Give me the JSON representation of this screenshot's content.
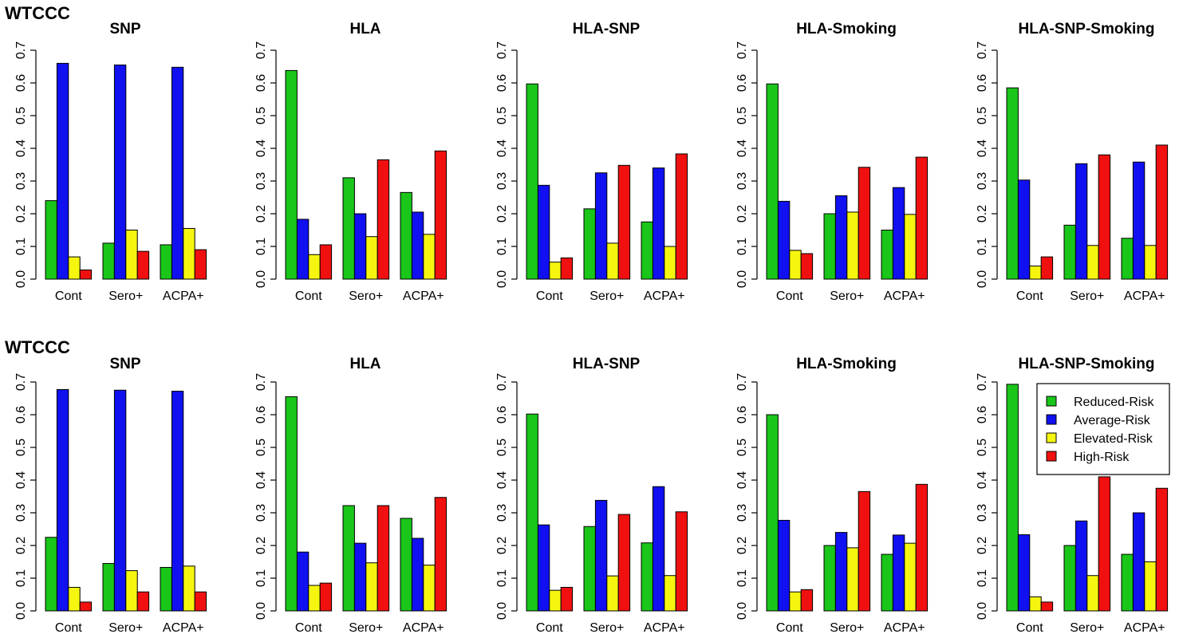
{
  "rows": [
    {
      "label": "WTCCC"
    },
    {
      "label": "WTCCC"
    }
  ],
  "legend": {
    "items": [
      {
        "label": "Reduced-Risk",
        "color": "#19c619"
      },
      {
        "label": "Average-Risk",
        "color": "#1010f0"
      },
      {
        "label": "Elevated-Risk",
        "color": "#f5f510"
      },
      {
        "label": "High-Risk",
        "color": "#f01010"
      }
    ]
  },
  "chart_data": [
    {
      "type": "bar",
      "title": "SNP",
      "categories": [
        "Cont",
        "Sero+",
        "ACPA+"
      ],
      "ylim": [
        0,
        0.7
      ],
      "yticks": [
        "0.0",
        "0.1",
        "0.2",
        "0.3",
        "0.4",
        "0.5",
        "0.6",
        "0.7"
      ],
      "series": [
        {
          "name": "Reduced-Risk",
          "values": [
            0.24,
            0.11,
            0.105
          ]
        },
        {
          "name": "Average-Risk",
          "values": [
            0.66,
            0.655,
            0.648
          ]
        },
        {
          "name": "Elevated-Risk",
          "values": [
            0.068,
            0.15,
            0.155
          ]
        },
        {
          "name": "High-Risk",
          "values": [
            0.028,
            0.085,
            0.09
          ]
        }
      ]
    },
    {
      "type": "bar",
      "title": "HLA",
      "categories": [
        "Cont",
        "Sero+",
        "ACPA+"
      ],
      "ylim": [
        0,
        0.7
      ],
      "yticks": [
        "0.0",
        "0.1",
        "0.2",
        "0.3",
        "0.4",
        "0.5",
        "0.6",
        "0.7"
      ],
      "series": [
        {
          "name": "Reduced-Risk",
          "values": [
            0.638,
            0.31,
            0.265
          ]
        },
        {
          "name": "Average-Risk",
          "values": [
            0.183,
            0.2,
            0.205
          ]
        },
        {
          "name": "Elevated-Risk",
          "values": [
            0.075,
            0.13,
            0.137
          ]
        },
        {
          "name": "High-Risk",
          "values": [
            0.105,
            0.365,
            0.392
          ]
        }
      ]
    },
    {
      "type": "bar",
      "title": "HLA-SNP",
      "categories": [
        "Cont",
        "Sero+",
        "ACPA+"
      ],
      "ylim": [
        0,
        0.7
      ],
      "yticks": [
        "0.0",
        "0.1",
        "0.2",
        "0.3",
        "0.4",
        "0.5",
        "0.6",
        "0.7"
      ],
      "series": [
        {
          "name": "Reduced-Risk",
          "values": [
            0.597,
            0.215,
            0.175
          ]
        },
        {
          "name": "Average-Risk",
          "values": [
            0.287,
            0.325,
            0.34
          ]
        },
        {
          "name": "Elevated-Risk",
          "values": [
            0.052,
            0.11,
            0.1
          ]
        },
        {
          "name": "High-Risk",
          "values": [
            0.065,
            0.348,
            0.383
          ]
        }
      ]
    },
    {
      "type": "bar",
      "title": "HLA-Smoking",
      "categories": [
        "Cont",
        "Sero+",
        "ACPA+"
      ],
      "ylim": [
        0,
        0.7
      ],
      "yticks": [
        "0.0",
        "0.1",
        "0.2",
        "0.3",
        "0.4",
        "0.5",
        "0.6",
        "0.7"
      ],
      "series": [
        {
          "name": "Reduced-Risk",
          "values": [
            0.597,
            0.2,
            0.15
          ]
        },
        {
          "name": "Average-Risk",
          "values": [
            0.238,
            0.255,
            0.28
          ]
        },
        {
          "name": "Elevated-Risk",
          "values": [
            0.088,
            0.205,
            0.198
          ]
        },
        {
          "name": "High-Risk",
          "values": [
            0.078,
            0.342,
            0.373
          ]
        }
      ]
    },
    {
      "type": "bar",
      "title": "HLA-SNP-Smoking",
      "categories": [
        "Cont",
        "Sero+",
        "ACPA+"
      ],
      "ylim": [
        0,
        0.7
      ],
      "yticks": [
        "0.0",
        "0.1",
        "0.2",
        "0.3",
        "0.4",
        "0.5",
        "0.6",
        "0.7"
      ],
      "series": [
        {
          "name": "Reduced-Risk",
          "values": [
            0.585,
            0.165,
            0.125
          ]
        },
        {
          "name": "Average-Risk",
          "values": [
            0.303,
            0.353,
            0.358
          ]
        },
        {
          "name": "Elevated-Risk",
          "values": [
            0.04,
            0.103,
            0.103
          ]
        },
        {
          "name": "High-Risk",
          "values": [
            0.068,
            0.38,
            0.41
          ]
        }
      ]
    },
    {
      "type": "bar",
      "title": "SNP",
      "categories": [
        "Cont",
        "Sero+",
        "ACPA+"
      ],
      "ylim": [
        0,
        0.7
      ],
      "yticks": [
        "0.0",
        "0.1",
        "0.2",
        "0.3",
        "0.4",
        "0.5",
        "0.6",
        "0.7"
      ],
      "series": [
        {
          "name": "Reduced-Risk",
          "values": [
            0.225,
            0.145,
            0.133
          ]
        },
        {
          "name": "Average-Risk",
          "values": [
            0.677,
            0.675,
            0.672
          ]
        },
        {
          "name": "Elevated-Risk",
          "values": [
            0.072,
            0.123,
            0.137
          ]
        },
        {
          "name": "High-Risk",
          "values": [
            0.027,
            0.058,
            0.058
          ]
        }
      ]
    },
    {
      "type": "bar",
      "title": "HLA",
      "categories": [
        "Cont",
        "Sero+",
        "ACPA+"
      ],
      "ylim": [
        0,
        0.7
      ],
      "yticks": [
        "0.0",
        "0.1",
        "0.2",
        "0.3",
        "0.4",
        "0.5",
        "0.6",
        "0.7"
      ],
      "series": [
        {
          "name": "Reduced-Risk",
          "values": [
            0.655,
            0.322,
            0.283
          ]
        },
        {
          "name": "Average-Risk",
          "values": [
            0.18,
            0.207,
            0.222
          ]
        },
        {
          "name": "Elevated-Risk",
          "values": [
            0.078,
            0.147,
            0.14
          ]
        },
        {
          "name": "High-Risk",
          "values": [
            0.085,
            0.322,
            0.347
          ]
        }
      ]
    },
    {
      "type": "bar",
      "title": "HLA-SNP",
      "categories": [
        "Cont",
        "Sero+",
        "ACPA+"
      ],
      "ylim": [
        0,
        0.7
      ],
      "yticks": [
        "0.0",
        "0.1",
        "0.2",
        "0.3",
        "0.4",
        "0.5",
        "0.6",
        "0.7"
      ],
      "series": [
        {
          "name": "Reduced-Risk",
          "values": [
            0.602,
            0.258,
            0.208
          ]
        },
        {
          "name": "Average-Risk",
          "values": [
            0.263,
            0.338,
            0.38
          ]
        },
        {
          "name": "Elevated-Risk",
          "values": [
            0.063,
            0.107,
            0.108
          ]
        },
        {
          "name": "High-Risk",
          "values": [
            0.072,
            0.295,
            0.303
          ]
        }
      ]
    },
    {
      "type": "bar",
      "title": "HLA-Smoking",
      "categories": [
        "Cont",
        "Sero+",
        "ACPA+"
      ],
      "ylim": [
        0,
        0.7
      ],
      "yticks": [
        "0.0",
        "0.1",
        "0.2",
        "0.3",
        "0.4",
        "0.5",
        "0.6",
        "0.7"
      ],
      "series": [
        {
          "name": "Reduced-Risk",
          "values": [
            0.6,
            0.2,
            0.173
          ]
        },
        {
          "name": "Average-Risk",
          "values": [
            0.277,
            0.24,
            0.232
          ]
        },
        {
          "name": "Elevated-Risk",
          "values": [
            0.058,
            0.193,
            0.207
          ]
        },
        {
          "name": "High-Risk",
          "values": [
            0.065,
            0.365,
            0.387
          ]
        }
      ]
    },
    {
      "type": "bar",
      "title": "HLA-SNP-Smoking",
      "categories": [
        "Cont",
        "Sero+",
        "ACPA+"
      ],
      "ylim": [
        0,
        0.7
      ],
      "yticks": [
        "0.0",
        "0.1",
        "0.2",
        "0.3",
        "0.4",
        "0.5",
        "0.6",
        "0.7"
      ],
      "legend": "top-right",
      "series": [
        {
          "name": "Reduced-Risk",
          "values": [
            0.693,
            0.2,
            0.173
          ]
        },
        {
          "name": "Average-Risk",
          "values": [
            0.233,
            0.275,
            0.3
          ]
        },
        {
          "name": "Elevated-Risk",
          "values": [
            0.043,
            0.108,
            0.15
          ]
        },
        {
          "name": "High-Risk",
          "values": [
            0.027,
            0.41,
            0.375
          ]
        }
      ]
    }
  ]
}
